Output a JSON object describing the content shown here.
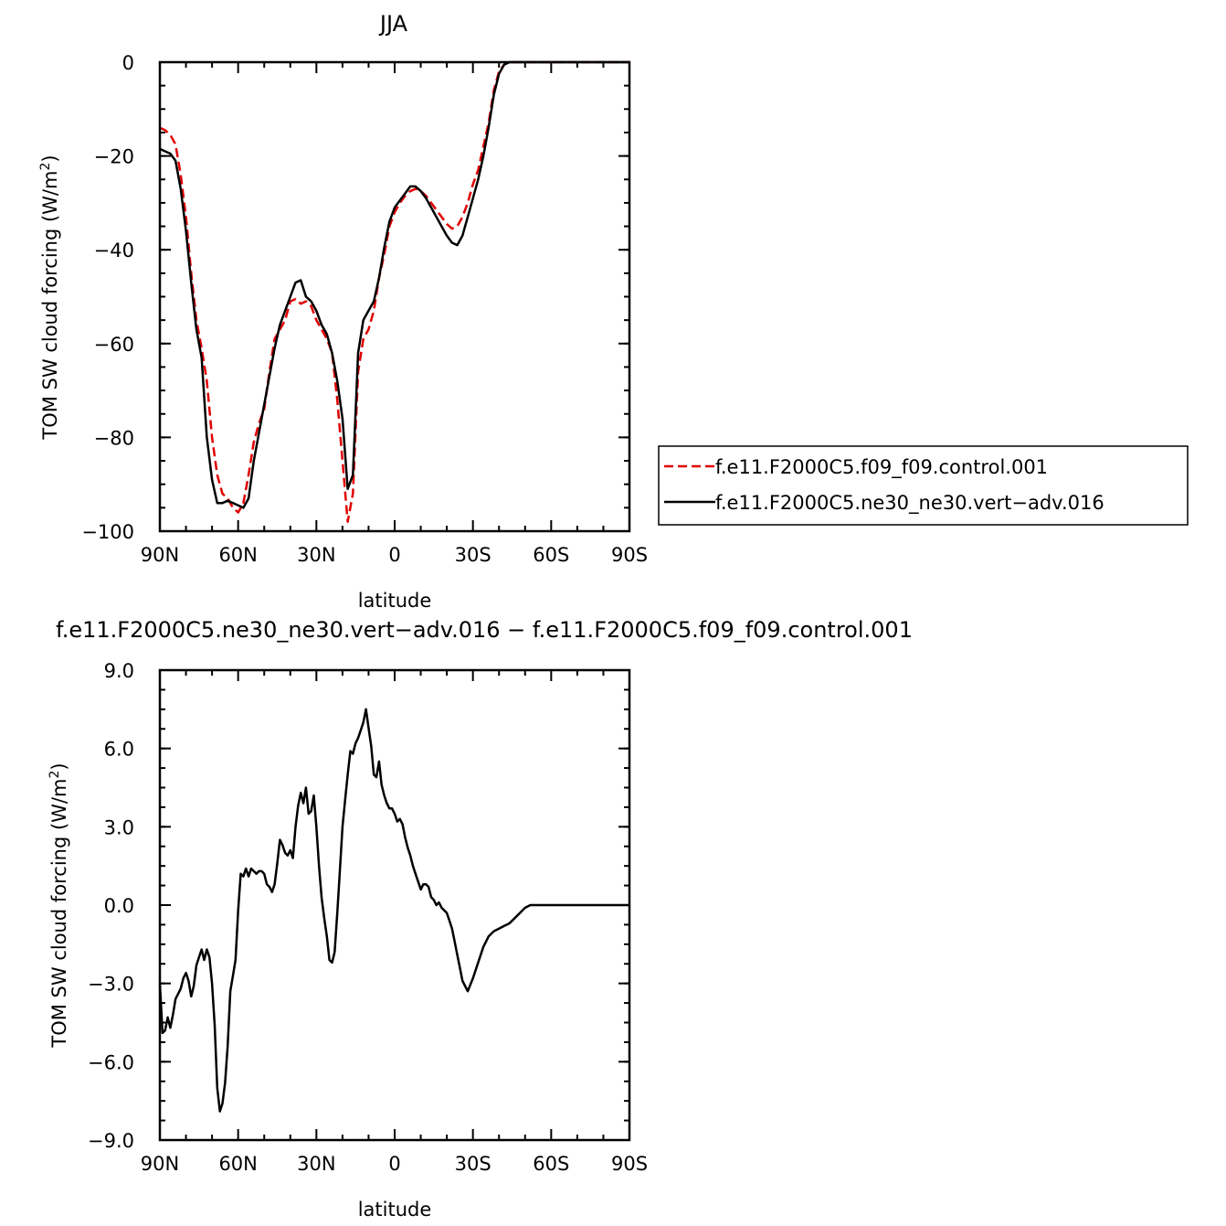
{
  "chart_data": [
    {
      "type": "line",
      "title": "JJA",
      "xlabel": "latitude",
      "ylabel": "TOM SW cloud forcing (W/m",
      "ylabel_sup": "2",
      "ylabel_end": ")",
      "xlim": [
        90,
        -90
      ],
      "ylim": [
        -100,
        0
      ],
      "xticks": [
        {
          "value": 90,
          "label": "90N"
        },
        {
          "value": 60,
          "label": "60N"
        },
        {
          "value": 30,
          "label": "30N"
        },
        {
          "value": 0,
          "label": "0"
        },
        {
          "value": -30,
          "label": "30S"
        },
        {
          "value": -60,
          "label": "60S"
        },
        {
          "value": -90,
          "label": "90S"
        }
      ],
      "yticks": [
        {
          "value": 0,
          "label": "0"
        },
        {
          "value": -20,
          "label": "−20"
        },
        {
          "value": -40,
          "label": "−40"
        },
        {
          "value": -60,
          "label": "−60"
        },
        {
          "value": -80,
          "label": "−80"
        },
        {
          "value": -100,
          "label": "−100"
        }
      ],
      "legend_position": "right",
      "series": [
        {
          "name": "f.e11.F2000C5.f09_f09.control.001",
          "color": "#e00000",
          "dash": true,
          "x": [
            90,
            88,
            86,
            84,
            82,
            80,
            78,
            76,
            74,
            72,
            70,
            68,
            66,
            64,
            62,
            60,
            58,
            56,
            54,
            52,
            50,
            48,
            46,
            44,
            42,
            40,
            38,
            36,
            34,
            32,
            30,
            28,
            26,
            24,
            22,
            20,
            18,
            16,
            14,
            12,
            10,
            8,
            6,
            4,
            2,
            0,
            -2,
            -4,
            -6,
            -8,
            -10,
            -12,
            -14,
            -16,
            -18,
            -20,
            -22,
            -24,
            -26,
            -28,
            -30,
            -32,
            -34,
            -36,
            -38,
            -40,
            -42,
            -44,
            -46,
            -48,
            -50,
            -52,
            -54,
            -56,
            -58,
            -60,
            -62,
            -64,
            -66,
            -68,
            -70,
            -72,
            -74,
            -76,
            -78,
            -80,
            -82,
            -84,
            -86,
            -88,
            -90
          ],
          "values": [
            -14,
            -14.5,
            -15.5,
            -17.5,
            -24,
            -33,
            -45,
            -55,
            -61,
            -68,
            -80,
            -88,
            -92,
            -93,
            -95,
            -96,
            -94,
            -88,
            -81,
            -77,
            -74,
            -66,
            -59,
            -57,
            -55,
            -51,
            -50.5,
            -51.5,
            -51,
            -52,
            -55,
            -57,
            -59,
            -62,
            -72,
            -85,
            -98,
            -92,
            -66,
            -59,
            -57,
            -53,
            -46,
            -41,
            -35,
            -32,
            -30,
            -28.5,
            -27.5,
            -27,
            -27.5,
            -28.5,
            -30,
            -31.5,
            -33,
            -34.5,
            -35.5,
            -35,
            -33,
            -30,
            -26,
            -23,
            -18,
            -13,
            -6,
            -2,
            -0.5,
            0,
            0,
            0,
            0,
            0,
            0,
            0,
            0,
            0,
            0,
            0,
            0,
            0,
            0,
            0,
            0,
            0,
            0,
            0,
            0,
            0,
            0,
            0,
            0
          ]
        },
        {
          "name": "f.e11.F2000C5.ne30_ne30.vert−adv.016",
          "color": "#000000",
          "dash": false,
          "x": [
            90,
            88,
            86,
            84,
            82,
            80,
            78,
            76,
            74,
            72,
            70,
            68,
            66,
            64,
            62,
            60,
            58,
            56,
            54,
            52,
            50,
            48,
            46,
            44,
            42,
            40,
            38,
            36,
            34,
            32,
            30,
            28,
            26,
            24,
            22,
            20,
            18,
            16,
            14,
            12,
            10,
            8,
            6,
            4,
            2,
            0,
            -2,
            -4,
            -6,
            -8,
            -10,
            -12,
            -14,
            -16,
            -18,
            -20,
            -22,
            -24,
            -26,
            -28,
            -30,
            -32,
            -34,
            -36,
            -38,
            -40,
            -42,
            -44,
            -46,
            -48,
            -50,
            -52,
            -54,
            -56,
            -58,
            -60,
            -62,
            -64,
            -66,
            -68,
            -70,
            -72,
            -74,
            -76,
            -78,
            -80,
            -82,
            -84,
            -86,
            -88,
            -90
          ],
          "values": [
            -18.5,
            -19,
            -19.5,
            -21,
            -27,
            -36,
            -47,
            -57,
            -63,
            -80,
            -89,
            -94,
            -94,
            -93.5,
            -94,
            -94.5,
            -95,
            -93,
            -85,
            -79,
            -73,
            -67,
            -61,
            -56,
            -53,
            -50,
            -47,
            -46.5,
            -50,
            -51,
            -53,
            -56,
            -58,
            -62,
            -68,
            -76,
            -91,
            -88,
            -62,
            -55,
            -53,
            -51,
            -46,
            -39.5,
            -34,
            -31,
            -29.5,
            -28,
            -26.5,
            -26.5,
            -27.5,
            -29,
            -31,
            -33,
            -35,
            -37,
            -38.5,
            -39,
            -37,
            -33,
            -29,
            -25,
            -20,
            -14,
            -7,
            -2.5,
            -0.5,
            0,
            0,
            0,
            0,
            0,
            0,
            0,
            0,
            0,
            0,
            0,
            0,
            0,
            0,
            0,
            0,
            0,
            0,
            0,
            0,
            0,
            0,
            0,
            0
          ]
        }
      ]
    },
    {
      "type": "line",
      "title": "f.e11.F2000C5.ne30_ne30.vert−adv.016 − f.e11.F2000C5.f09_f09.control.001",
      "xlabel": "latitude",
      "ylabel": "TOM SW cloud forcing (W/m",
      "ylabel_sup": "2",
      "ylabel_end": ")",
      "xlim": [
        90,
        -90
      ],
      "ylim": [
        -9,
        9
      ],
      "xticks": [
        {
          "value": 90,
          "label": "90N"
        },
        {
          "value": 60,
          "label": "60N"
        },
        {
          "value": 30,
          "label": "30N"
        },
        {
          "value": 0,
          "label": "0"
        },
        {
          "value": -30,
          "label": "30S"
        },
        {
          "value": -60,
          "label": "60S"
        },
        {
          "value": -90,
          "label": "90S"
        }
      ],
      "yticks": [
        {
          "value": 9,
          "label": "9.0"
        },
        {
          "value": 6,
          "label": "6.0"
        },
        {
          "value": 3,
          "label": "3.0"
        },
        {
          "value": 0,
          "label": "0.0"
        },
        {
          "value": -3,
          "label": "−3.0"
        },
        {
          "value": -6,
          "label": "−6.0"
        },
        {
          "value": -9,
          "label": "−9.0"
        }
      ],
      "series": [
        {
          "color": "#000000",
          "dash": false,
          "x": [
            90,
            89,
            88,
            87,
            86,
            85,
            84,
            83,
            82,
            81,
            80,
            79,
            78,
            77,
            76,
            75,
            74,
            73,
            72,
            71,
            70,
            69,
            68,
            67,
            66,
            65,
            64,
            63,
            62,
            61,
            60,
            59,
            58,
            57,
            56,
            55,
            54,
            53,
            52,
            51,
            50,
            49,
            48,
            47,
            46,
            45,
            44,
            43,
            42,
            41,
            40,
            39,
            38,
            37,
            36,
            35,
            34,
            33,
            32,
            31,
            30,
            29,
            28,
            27,
            26,
            25,
            24,
            23,
            22,
            21,
            20,
            19,
            18,
            17,
            16,
            15,
            14,
            13,
            12,
            11,
            10,
            9,
            8,
            7,
            6,
            5,
            4,
            3,
            2,
            1,
            0,
            -1,
            -2,
            -3,
            -4,
            -5,
            -6,
            -7,
            -8,
            -9,
            -10,
            -11,
            -12,
            -13,
            -14,
            -15,
            -16,
            -17,
            -18,
            -19,
            -20,
            -21,
            -22,
            -23,
            -24,
            -25,
            -26,
            -27,
            -28,
            -30,
            -32,
            -34,
            -36,
            -38,
            -40,
            -42,
            -44,
            -46,
            -48,
            -50,
            -52,
            -54,
            -56,
            -58,
            -60,
            -62,
            -64,
            -66,
            -68,
            -70,
            -75,
            -80,
            -85,
            -90
          ],
          "values": [
            -3,
            -4.9,
            -4.8,
            -4.3,
            -4.7,
            -4.2,
            -3.6,
            -3.4,
            -3.2,
            -2.8,
            -2.6,
            -2.9,
            -3.5,
            -3.1,
            -2.3,
            -2.0,
            -1.7,
            -2.1,
            -1.7,
            -2.0,
            -3.0,
            -4.6,
            -7.0,
            -7.9,
            -7.6,
            -6.8,
            -5.4,
            -3.3,
            -2.7,
            -2.1,
            -0.2,
            1.2,
            1.1,
            1.4,
            1.1,
            1.4,
            1.3,
            1.2,
            1.3,
            1.3,
            1.2,
            0.8,
            0.7,
            0.5,
            0.8,
            1.6,
            2.5,
            2.3,
            2.0,
            1.9,
            2.1,
            1.8,
            3.0,
            3.8,
            4.3,
            3.9,
            4.5,
            3.5,
            3.6,
            4.2,
            3.0,
            1.5,
            0.3,
            -0.5,
            -1.2,
            -2.1,
            -2.2,
            -1.8,
            -0.3,
            1.3,
            3.0,
            4.0,
            5.0,
            5.9,
            5.8,
            6.2,
            6.4,
            6.7,
            7.0,
            7.5,
            6.8,
            6.1,
            5.0,
            4.9,
            5.5,
            4.6,
            4.2,
            3.9,
            3.7,
            3.7,
            3.5,
            3.2,
            3.3,
            3.1,
            2.6,
            2.2,
            1.9,
            1.5,
            1.2,
            0.9,
            0.6,
            0.8,
            0.8,
            0.7,
            0.3,
            0.2,
            0.0,
            0.1,
            -0.1,
            -0.2,
            -0.3,
            -0.6,
            -0.9,
            -1.4,
            -1.9,
            -2.4,
            -2.9,
            -3.1,
            -3.3,
            -2.8,
            -2.2,
            -1.6,
            -1.2,
            -1.0,
            -0.9,
            -0.8,
            -0.7,
            -0.5,
            -0.3,
            -0.1,
            0,
            0,
            0,
            0,
            0,
            0,
            0,
            0,
            0,
            0,
            0,
            0,
            0,
            0
          ]
        }
      ]
    }
  ]
}
